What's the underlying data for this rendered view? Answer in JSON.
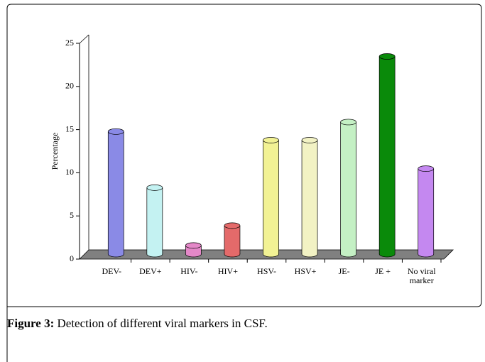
{
  "chart_data": {
    "type": "bar3d",
    "y_label": "Percentage",
    "categories": [
      "DEV-",
      "DEV+",
      "HIV-",
      "HIV+",
      "HSV-",
      "HSV+",
      "JE-",
      "JE +",
      "No viral marker"
    ],
    "values": [
      14.2,
      7.7,
      1,
      3.3,
      13.2,
      13.2,
      15.3,
      22.9,
      9.9
    ],
    "colors": [
      "#8a8ae6",
      "#c4f2f2",
      "#e488c8",
      "#e46a6a",
      "#f2f294",
      "#f2f2c4",
      "#c4f0c4",
      "#0a8a0a",
      "#c488f0"
    ],
    "ylim": [
      0,
      25
    ],
    "yticks": [
      0,
      5,
      10,
      15,
      20,
      25
    ],
    "grid": false
  },
  "caption": {
    "label": "Figure 3:",
    "text": " Detection of different viral markers in CSF."
  }
}
